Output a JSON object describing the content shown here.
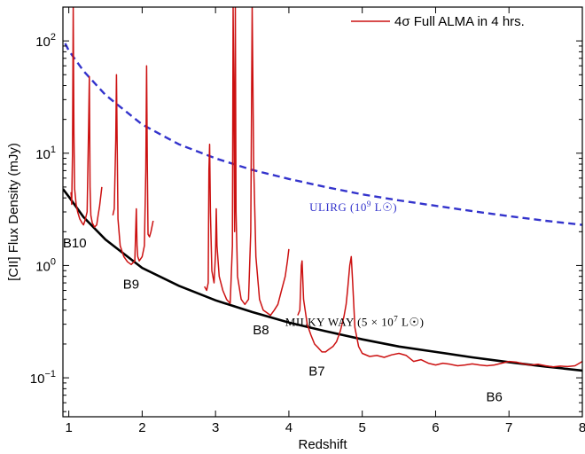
{
  "colors": {
    "sensitivity": "#cc1111",
    "ulirg": "#3333cc",
    "milky_way": "#000000"
  },
  "chart_data": {
    "type": "line",
    "xlabel": "Redshift",
    "ylabel": "[CII] Flux Density (mJy)",
    "xlim": [
      0.92,
      8.0
    ],
    "ylim": [
      0.045,
      200
    ],
    "yscale": "log",
    "grid": false,
    "legend_position": "top-right",
    "x_ticks": [
      {
        "value": 1,
        "label": "1"
      },
      {
        "value": 2,
        "label": "2"
      },
      {
        "value": 3,
        "label": "3"
      },
      {
        "value": 4,
        "label": "4"
      },
      {
        "value": 5,
        "label": "5"
      },
      {
        "value": 6,
        "label": "6"
      },
      {
        "value": 7,
        "label": "7"
      },
      {
        "value": 8,
        "label": "8"
      }
    ],
    "y_ticks": [
      {
        "value": 0.1,
        "base": "10",
        "exp": "−1"
      },
      {
        "value": 1,
        "base": "10",
        "exp": "0"
      },
      {
        "value": 10,
        "base": "10",
        "exp": "1"
      },
      {
        "value": 100,
        "base": "10",
        "exp": "2"
      }
    ],
    "legend": [
      {
        "label": "4σ Full ALMA in 4 hrs.",
        "series": "sensitivity"
      }
    ],
    "annotations": [
      {
        "text": "ULIRG (10",
        "sup": "9",
        "tail": " L☉)",
        "x": 4.28,
        "y": 3.05,
        "color": "ulirg"
      },
      {
        "text": "MILKY WAY (5 × 10",
        "sup": "7",
        "tail": " L☉)",
        "x": 3.95,
        "y": 0.29,
        "color": "milky_way"
      }
    ],
    "band_labels": [
      {
        "text": "B10",
        "x": 1.08,
        "y": 1.45
      },
      {
        "text": "B9",
        "x": 1.85,
        "y": 0.62
      },
      {
        "text": "B8",
        "x": 3.62,
        "y": 0.245
      },
      {
        "text": "B7",
        "x": 4.38,
        "y": 0.105
      },
      {
        "text": "B6",
        "x": 6.8,
        "y": 0.062
      }
    ],
    "series": [
      {
        "key": "ulirg",
        "style": "dashed",
        "x": [
          0.95,
          1.0,
          1.2,
          1.5,
          2.0,
          2.5,
          3.0,
          3.5,
          4.0,
          4.5,
          5.0,
          5.5,
          6.0,
          6.5,
          7.0,
          7.5,
          8.0
        ],
        "y": [
          95,
          82,
          54,
          33,
          18,
          12,
          9.0,
          7.1,
          5.9,
          5.0,
          4.3,
          3.8,
          3.4,
          3.05,
          2.75,
          2.5,
          2.3
        ]
      },
      {
        "key": "milky_way",
        "style": "solid",
        "x": [
          0.92,
          1.0,
          1.2,
          1.5,
          2.0,
          2.5,
          3.0,
          3.5,
          4.0,
          4.5,
          5.0,
          5.5,
          6.0,
          6.5,
          7.0,
          7.5,
          8.0
        ],
        "y": [
          4.8,
          4.1,
          2.7,
          1.7,
          0.95,
          0.66,
          0.49,
          0.385,
          0.31,
          0.26,
          0.22,
          0.19,
          0.17,
          0.152,
          0.138,
          0.126,
          0.116
        ]
      },
      {
        "key": "sensitivity",
        "style": "solid",
        "segments": [
          {
            "x": [
              1.03,
              1.04,
              1.05,
              1.06,
              1.07,
              1.08,
              1.1,
              1.12,
              1.15,
              1.18,
              1.2,
              1.22,
              1.25,
              1.27,
              1.28,
              1.29,
              1.3,
              1.32,
              1.35,
              1.38,
              1.4,
              1.42,
              1.45
            ],
            "y": [
              4.5,
              3.5,
              10,
              200,
              15,
              4.8,
              3.5,
              3.0,
              2.6,
              2.4,
              2.3,
              2.5,
              3.0,
              18,
              48,
              5.0,
              2.8,
              2.4,
              2.2,
              2.3,
              2.8,
              3.4,
              5.0
            ]
          },
          {
            "x": [
              1.6,
              1.62,
              1.64,
              1.65,
              1.66,
              1.67,
              1.7,
              1.75,
              1.8,
              1.85,
              1.9,
              1.92,
              1.93,
              1.94,
              1.96,
              2.0,
              2.03,
              2.05,
              2.06,
              2.07,
              2.08,
              2.1,
              2.12,
              2.15
            ],
            "y": [
              2.8,
              3.2,
              13,
              50,
              12,
              2.6,
              1.5,
              1.2,
              1.08,
              1.02,
              1.1,
              3.2,
              1.5,
              1.2,
              1.1,
              1.2,
              1.5,
              7.0,
              60,
              8.0,
              1.9,
              1.8,
              2.0,
              2.5
            ]
          },
          {
            "x": [
              2.85,
              2.88,
              2.9,
              2.91,
              2.92,
              2.93,
              2.95,
              2.98,
              3.0,
              3.01,
              3.02,
              3.05,
              3.1,
              3.15,
              3.2,
              3.23,
              3.24,
              3.25,
              3.26,
              3.27,
              3.28,
              3.3,
              3.35,
              3.4,
              3.45,
              3.48,
              3.5,
              3.52,
              3.55,
              3.6,
              3.65,
              3.7,
              3.75,
              3.8,
              3.85,
              3.9,
              3.95,
              3.98,
              4.0
            ],
            "y": [
              0.65,
              0.6,
              0.7,
              7.0,
              12,
              3.0,
              0.9,
              0.7,
              1.3,
              3.2,
              1.5,
              0.8,
              0.6,
              0.5,
              0.46,
              1.5,
              200,
              30,
              2.0,
              200,
              3.0,
              0.8,
              0.5,
              0.45,
              0.5,
              2.0,
              200,
              8.0,
              1.2,
              0.5,
              0.4,
              0.38,
              0.36,
              0.4,
              0.45,
              0.6,
              0.8,
              1.1,
              1.4
            ]
          },
          {
            "x": [
              4.12,
              4.15,
              4.17,
              4.18,
              4.2,
              4.25,
              4.3,
              4.35,
              4.4,
              4.45,
              4.5,
              4.55,
              4.6,
              4.65,
              4.7,
              4.75,
              4.78,
              4.8,
              4.83,
              4.85,
              4.87,
              4.9,
              4.95,
              5.0,
              5.1,
              5.2,
              5.3,
              5.4,
              5.5,
              5.6,
              5.7,
              5.8,
              5.9,
              6.0,
              6.1,
              6.2,
              6.3,
              6.4,
              6.5,
              6.6,
              6.7,
              6.8,
              6.9,
              7.0,
              7.1,
              7.2,
              7.3,
              7.4,
              7.5,
              7.6,
              7.7,
              7.8,
              7.9,
              8.0
            ],
            "y": [
              0.36,
              0.4,
              1.0,
              1.1,
              0.5,
              0.3,
              0.24,
              0.2,
              0.185,
              0.17,
              0.17,
              0.18,
              0.19,
              0.21,
              0.26,
              0.35,
              0.45,
              0.6,
              1.0,
              1.2,
              0.7,
              0.28,
              0.19,
              0.165,
              0.155,
              0.158,
              0.152,
              0.16,
              0.165,
              0.158,
              0.14,
              0.145,
              0.135,
              0.13,
              0.135,
              0.132,
              0.128,
              0.13,
              0.133,
              0.13,
              0.128,
              0.13,
              0.135,
              0.14,
              0.138,
              0.133,
              0.13,
              0.132,
              0.128,
              0.125,
              0.127,
              0.126,
              0.128,
              0.14
            ]
          }
        ]
      }
    ]
  }
}
